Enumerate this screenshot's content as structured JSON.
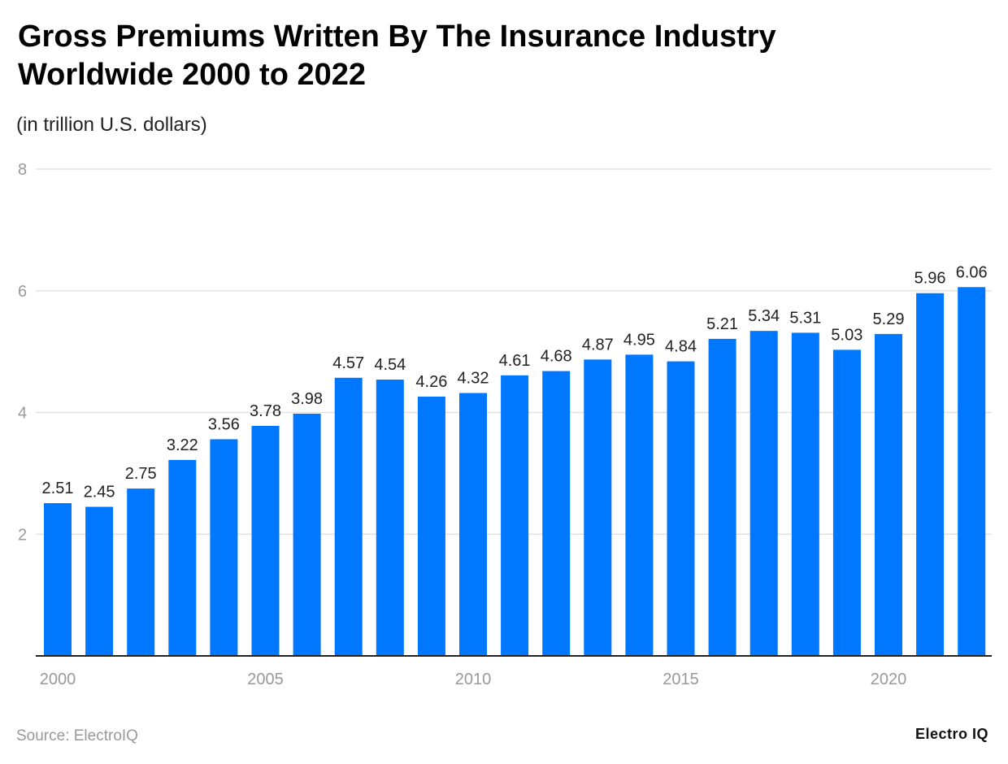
{
  "chart_data": {
    "type": "bar",
    "title": "Gross Premiums Written By The Insurance Industry Worldwide 2000 to 2022",
    "subtitle": "(in trillion U.S. dollars)",
    "categories": [
      2000,
      2001,
      2002,
      2003,
      2004,
      2005,
      2006,
      2007,
      2008,
      2009,
      2010,
      2011,
      2012,
      2013,
      2014,
      2015,
      2016,
      2017,
      2018,
      2019,
      2020,
      2021,
      2022
    ],
    "values": [
      2.51,
      2.45,
      2.75,
      3.22,
      3.56,
      3.78,
      3.98,
      4.57,
      4.54,
      4.26,
      4.32,
      4.61,
      4.68,
      4.87,
      4.95,
      4.84,
      5.21,
      5.34,
      5.31,
      5.03,
      5.29,
      5.96,
      6.06
    ],
    "xticks": [
      "2000",
      "2005",
      "2010",
      "2015",
      "2020"
    ],
    "yticks": [
      "2",
      "4",
      "6",
      "8"
    ],
    "ylim": [
      0,
      8
    ],
    "grid": true,
    "bar_color": "#0077FF"
  },
  "footer": {
    "source": "Source: ElectroIQ",
    "logo": "Electro IQ"
  }
}
